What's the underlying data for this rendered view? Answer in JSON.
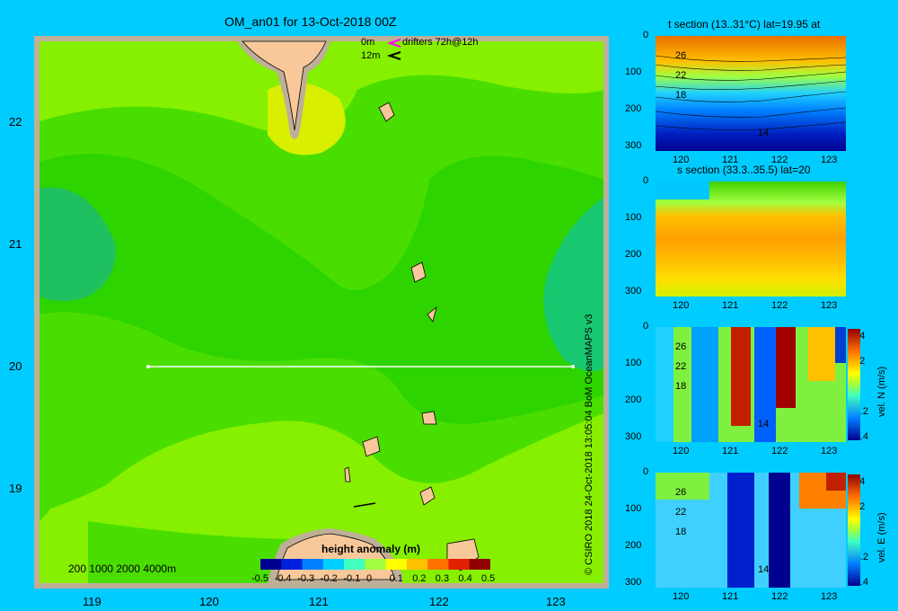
{
  "map": {
    "title": "OM_an01 for 13-Oct-2018 00Z",
    "lat_labels": [
      "22",
      "21",
      "20",
      "19"
    ],
    "lon_labels": [
      "119",
      "120",
      "121",
      "122",
      "123"
    ],
    "drifters": {
      "line1_depth": "0m",
      "line1_text": "drifters 72h@12h",
      "line2_depth": "12m",
      "line1_color": "#ff00ff",
      "line2_color": "#000000"
    },
    "depth_legend": "200  1000  2000  4000m",
    "section_line": {
      "lat": 20,
      "lon_start": 119.5,
      "lon_end": 123.2
    },
    "colors": {
      "land": "#f8c89a",
      "border": "#bfae98",
      "field_base": "#2ed400"
    }
  },
  "colorbar": {
    "title": "height anomaly (m)",
    "ticks": [
      "-0.5",
      "-0.4",
      "-0.3",
      "-0.2",
      "-0.1",
      "0",
      "0.1",
      "0.2",
      "0.3",
      "0.4",
      "0.5"
    ],
    "colors": [
      "#000090",
      "#0020e0",
      "#0080ff",
      "#00d0ff",
      "#40ffc0",
      "#a0ff40",
      "#ffff00",
      "#ffc000",
      "#ff7000",
      "#e02000",
      "#900000"
    ]
  },
  "sections": [
    {
      "title": "t section (13..31°C) lat=19.95 at",
      "y_ticks": [
        "0",
        "100",
        "200",
        "300"
      ],
      "x_ticks": [
        "120",
        "121",
        "122",
        "123"
      ],
      "contours": [
        "26",
        "22",
        "18",
        "14"
      ]
    },
    {
      "title": "s section (33.3..35.5) lat=20",
      "y_ticks": [
        "0",
        "100",
        "200",
        "300"
      ],
      "x_ticks": [
        "120",
        "121",
        "122",
        "123"
      ]
    },
    {
      "title": "",
      "y_ticks": [
        "0",
        "100",
        "200",
        "300"
      ],
      "x_ticks": [
        "120",
        "121",
        "122",
        "123"
      ],
      "contours": [
        "26",
        "22",
        "18",
        "14"
      ],
      "cbar_label": "vel. N (m/s)",
      "cbar_ticks": [
        "0.4",
        "0.2",
        "0",
        "-0.2",
        "-0.4"
      ]
    },
    {
      "title": "",
      "y_ticks": [
        "0",
        "100",
        "200",
        "300"
      ],
      "x_ticks": [
        "120",
        "121",
        "122",
        "123"
      ],
      "contours": [
        "26",
        "22",
        "18",
        "14"
      ],
      "cbar_label": "vel. E (m/s)",
      "cbar_ticks": [
        "0.4",
        "0.2",
        "0",
        "-0.2",
        "-0.4"
      ]
    }
  ],
  "credit": "© CSIRO 2018  24-Oct-2018 13:05:04  BoM OceanMAPS v3"
}
